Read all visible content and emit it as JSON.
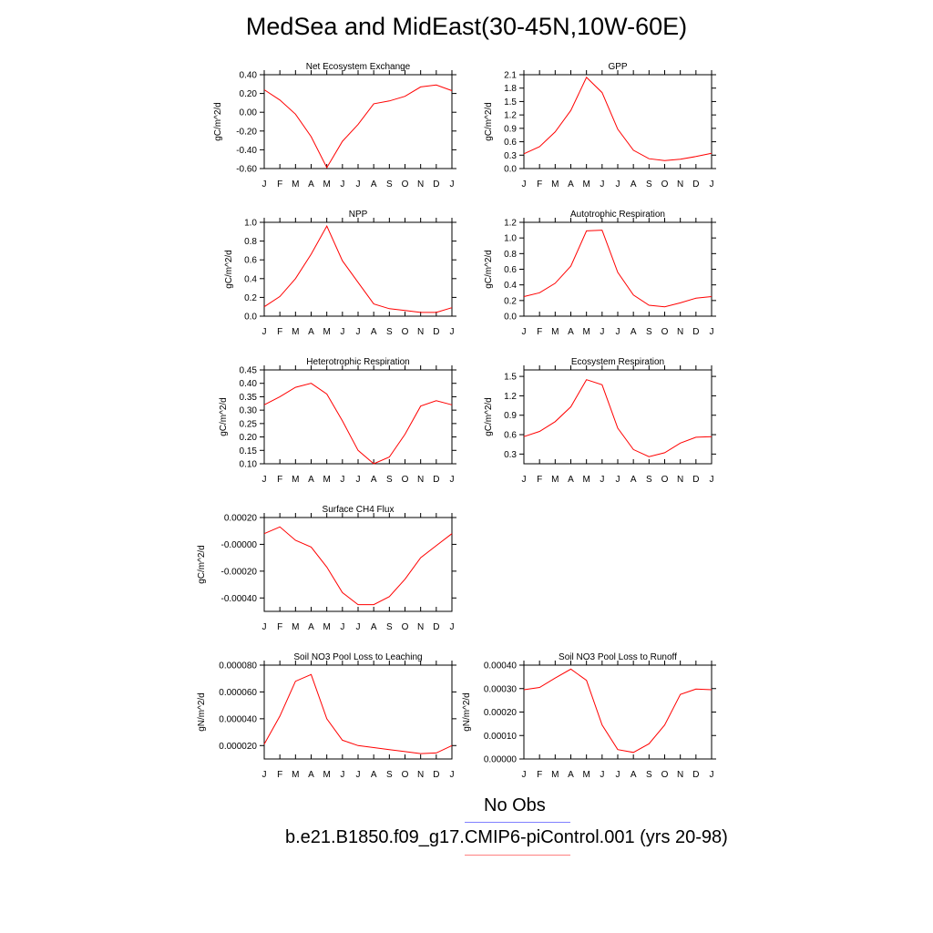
{
  "title": "MedSea and MidEast(30-45N,10W-60E)",
  "month_labels": [
    "J",
    "F",
    "M",
    "A",
    "M",
    "J",
    "J",
    "A",
    "S",
    "O",
    "N",
    "D",
    "J"
  ],
  "legend": [
    {
      "label": "No Obs",
      "color": "#8080ff"
    },
    {
      "label": "b.e21.B1850.f09_g17.CMIP6-piControl.001 (yrs 20-98)",
      "color": "#ff8080"
    }
  ],
  "line_color": "#ff0000",
  "chart_data": [
    {
      "type": "line",
      "title": "Net Ecosystem Exchange",
      "ylabel": "gC/m^2/d",
      "ylim": [
        -0.6,
        0.4
      ],
      "yticks": [
        0.4,
        0.2,
        0.0,
        -0.2,
        -0.4,
        -0.6
      ],
      "ytick_labels": [
        "0.40",
        "0.20",
        "0.00",
        "-0.20",
        "-0.40",
        "-0.60"
      ],
      "values": [
        0.24,
        0.13,
        -0.02,
        -0.26,
        -0.59,
        -0.31,
        -0.13,
        0.09,
        0.12,
        0.17,
        0.27,
        0.29,
        0.23
      ]
    },
    {
      "type": "line",
      "title": "GPP",
      "ylabel": "gC/m^2/d",
      "ylim": [
        0.0,
        2.1
      ],
      "yticks": [
        2.1,
        1.8,
        1.5,
        1.2,
        0.9,
        0.6,
        0.3,
        0.0
      ],
      "ytick_labels": [
        "2.1",
        "1.8",
        "1.5",
        "1.2",
        "0.9",
        "0.6",
        "0.3",
        "0.0"
      ],
      "values": [
        0.33,
        0.49,
        0.82,
        1.3,
        2.04,
        1.7,
        0.88,
        0.41,
        0.22,
        0.18,
        0.21,
        0.27,
        0.34
      ]
    },
    {
      "type": "line",
      "title": "NPP",
      "ylabel": "gC/m^2/d",
      "ylim": [
        0.0,
        1.0
      ],
      "yticks": [
        1.0,
        0.8,
        0.6,
        0.4,
        0.2,
        0.0
      ],
      "ytick_labels": [
        "1.0",
        "0.8",
        "0.6",
        "0.4",
        "0.2",
        "0.0"
      ],
      "values": [
        0.1,
        0.21,
        0.4,
        0.66,
        0.96,
        0.59,
        0.36,
        0.13,
        0.08,
        0.06,
        0.04,
        0.04,
        0.09
      ]
    },
    {
      "type": "line",
      "title": "Autotrophic Respiration",
      "ylabel": "gC/m^2/d",
      "ylim": [
        0.0,
        1.2
      ],
      "yticks": [
        1.2,
        1.0,
        0.8,
        0.6,
        0.4,
        0.2,
        0.0
      ],
      "ytick_labels": [
        "1.2",
        "1.0",
        "0.8",
        "0.6",
        "0.4",
        "0.2",
        "0.0"
      ],
      "values": [
        0.25,
        0.3,
        0.42,
        0.64,
        1.09,
        1.1,
        0.56,
        0.27,
        0.14,
        0.12,
        0.17,
        0.23,
        0.25
      ]
    },
    {
      "type": "line",
      "title": "Heterotrophic Respiration",
      "ylabel": "gC/m^2/d",
      "ylim": [
        0.1,
        0.45
      ],
      "yticks": [
        0.45,
        0.4,
        0.35,
        0.3,
        0.25,
        0.2,
        0.15,
        0.1
      ],
      "ytick_labels": [
        "0.45",
        "0.40",
        "0.35",
        "0.30",
        "0.25",
        "0.20",
        "0.15",
        "0.10"
      ],
      "values": [
        0.32,
        0.35,
        0.385,
        0.4,
        0.36,
        0.26,
        0.15,
        0.1,
        0.125,
        0.21,
        0.315,
        0.335,
        0.32
      ]
    },
    {
      "type": "line",
      "title": "Ecosystem Respiration",
      "ylabel": "gC/m^2/d",
      "ylim": [
        0.15,
        1.6
      ],
      "yticks": [
        1.5,
        1.2,
        0.9,
        0.6,
        0.3
      ],
      "ytick_labels": [
        "1.5",
        "1.2",
        "0.9",
        "0.6",
        "0.3"
      ],
      "values": [
        0.57,
        0.65,
        0.8,
        1.03,
        1.45,
        1.37,
        0.7,
        0.37,
        0.26,
        0.32,
        0.47,
        0.56,
        0.57
      ]
    },
    {
      "type": "line",
      "title": "Surface CH4 Flux",
      "ylabel": "gC/m^2/d",
      "ylim": [
        -0.0005,
        0.0002
      ],
      "yticks": [
        0.0002,
        0.0,
        -0.0002,
        -0.0004
      ],
      "ytick_labels": [
        "0.00020",
        "-0.00000",
        "-0.00020",
        "-0.00040"
      ],
      "values": [
        8e-05,
        0.00013,
        3e-05,
        -2e-05,
        -0.00017,
        -0.00036,
        -0.00045,
        -0.00045,
        -0.00039,
        -0.00026,
        -0.0001,
        -1e-05,
        8e-05
      ]
    },
    {
      "type": "line",
      "title": "Soil NO3 Pool Loss to Leaching",
      "ylabel": "gN/m^2/d",
      "ylim": [
        1e-05,
        8e-05
      ],
      "yticks": [
        8e-05,
        6e-05,
        4e-05,
        2e-05
      ],
      "ytick_labels": [
        "0.000080",
        "0.000060",
        "0.000040",
        "0.000020"
      ],
      "values": [
        2.1e-05,
        4.2e-05,
        6.8e-05,
        7.3e-05,
        4e-05,
        2.4e-05,
        2e-05,
        1.85e-05,
        1.7e-05,
        1.55e-05,
        1.4e-05,
        1.45e-05,
        2e-05
      ]
    },
    {
      "type": "line",
      "title": "Soil NO3 Pool Loss to Runoff",
      "ylabel": "gN/m^2/d",
      "ylim": [
        0.0,
        0.0004
      ],
      "yticks": [
        0.0004,
        0.0003,
        0.0002,
        0.0001,
        0.0
      ],
      "ytick_labels": [
        "0.00040",
        "0.00030",
        "0.00020",
        "0.00010",
        "0.00000"
      ],
      "values": [
        0.000295,
        0.000305,
        0.000345,
        0.000383,
        0.000335,
        0.000145,
        4e-05,
        2.8e-05,
        6.5e-05,
        0.000145,
        0.000275,
        0.000298,
        0.000295
      ]
    }
  ]
}
